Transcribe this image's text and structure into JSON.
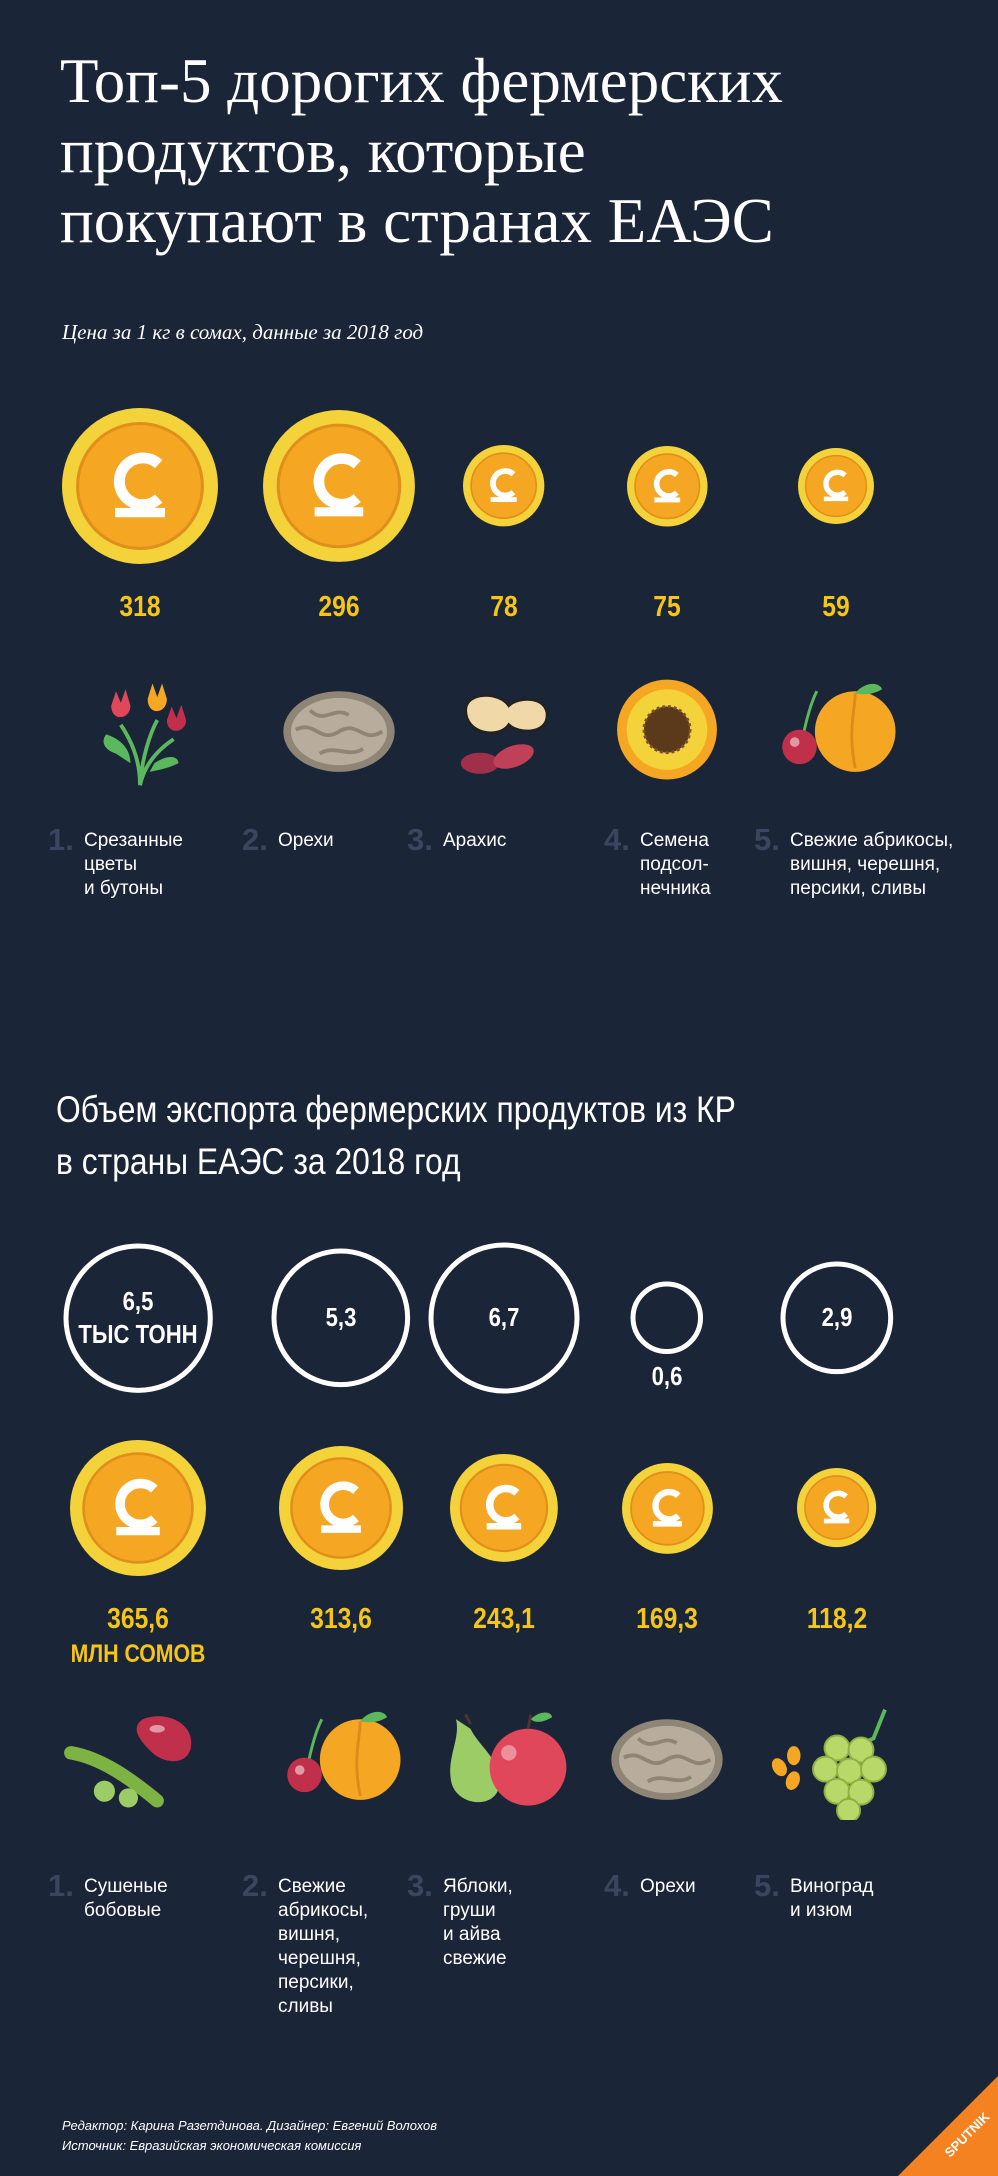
{
  "header": {
    "title_lines": [
      "Топ-5 дорогих фермерских",
      "продуктов, которые",
      "покупают в странах ЕАЭС"
    ],
    "subtitle": "Цена за 1 кг в сомах, данные за 2018 год"
  },
  "section2": {
    "title_lines": [
      "Объем экспорта фермерских продуктов из КР",
      "в страны ЕАЭС за 2018 год"
    ]
  },
  "chart_data": [
    {
      "type": "bar",
      "title": "Топ-5 дорогих фермерских продуктов, которые покупают в странах ЕАЭС",
      "subtitle": "Цена за 1 кг в сомах, данные за 2018 год",
      "categories": [
        "Срезанные цветы и бутоны",
        "Орехи",
        "Арахис",
        "Семена подсолнечника",
        "Свежие абрикосы, вишня, черешня, персики, сливы"
      ],
      "ranks": [
        "1.",
        "2.",
        "3.",
        "4.",
        "5."
      ],
      "labels": [
        "Срезанные\nцветы\nи бутоны",
        "Орехи",
        "Арахис",
        "Семена\nподсол-\nнечника",
        "Свежие абрикосы,\nвишня, черешня,\nперсики, сливы"
      ],
      "values": [
        318,
        296,
        78,
        75,
        59
      ],
      "value_labels": [
        "318",
        "296",
        "78",
        "75",
        "59"
      ],
      "icons": [
        "tulips-icon",
        "walnut-icon",
        "peanut-icon",
        "sunflower-icon",
        "apricot-cherry-icon"
      ]
    },
    {
      "type": "bar",
      "title": "Объем экспорта фермерских продуктов из КР в страны ЕАЭС за 2018 год",
      "categories": [
        "Сушеные бобовые",
        "Свежие абрикосы, вишня, черешня, персики, сливы",
        "Яблоки, груши и айва свежие",
        "Орехи",
        "Виноград и изюм"
      ],
      "ranks": [
        "1.",
        "2.",
        "3.",
        "4.",
        "5."
      ],
      "labels": [
        "Сушеные\nбобовые",
        "Свежие\nабрикосы,\nвишня,\nчерешня,\nперсики,\nсливы",
        "Яблоки,\nгруши\nи айва\nсвежие",
        "Орехи",
        "Виноград\nи изюм"
      ],
      "series": [
        {
          "name": "тыс тонн",
          "values": [
            6.5,
            5.3,
            6.7,
            0.6,
            2.9
          ],
          "value_labels": [
            "6,5",
            "5,3",
            "6,7",
            "0,6",
            "2,9"
          ],
          "unit_label": "ТЫС ТОНН"
        },
        {
          "name": "млн сомов",
          "values": [
            365.6,
            313.6,
            243.1,
            169.3,
            118.2
          ],
          "value_labels": [
            "365,6",
            "313,6",
            "243,1",
            "169,3",
            "118,2"
          ],
          "unit_label": "МЛН СОМОВ"
        }
      ],
      "icons": [
        "beans-icon",
        "apricot-cherry-icon",
        "apple-pear-icon",
        "walnut-icon",
        "grapes-icon"
      ]
    }
  ],
  "footer": {
    "credits": "Редактор: Карина Разетдинова. Дизайнер: Евгений Волохов",
    "source": "Источник: Евразийская экономическая комиссия",
    "logo_text": "SPUTNIK"
  },
  "colors": {
    "background": "#1b2538",
    "accent": "#f5c518",
    "coin_outer": "#f4d23a",
    "coin_inner": "#f5a623"
  }
}
